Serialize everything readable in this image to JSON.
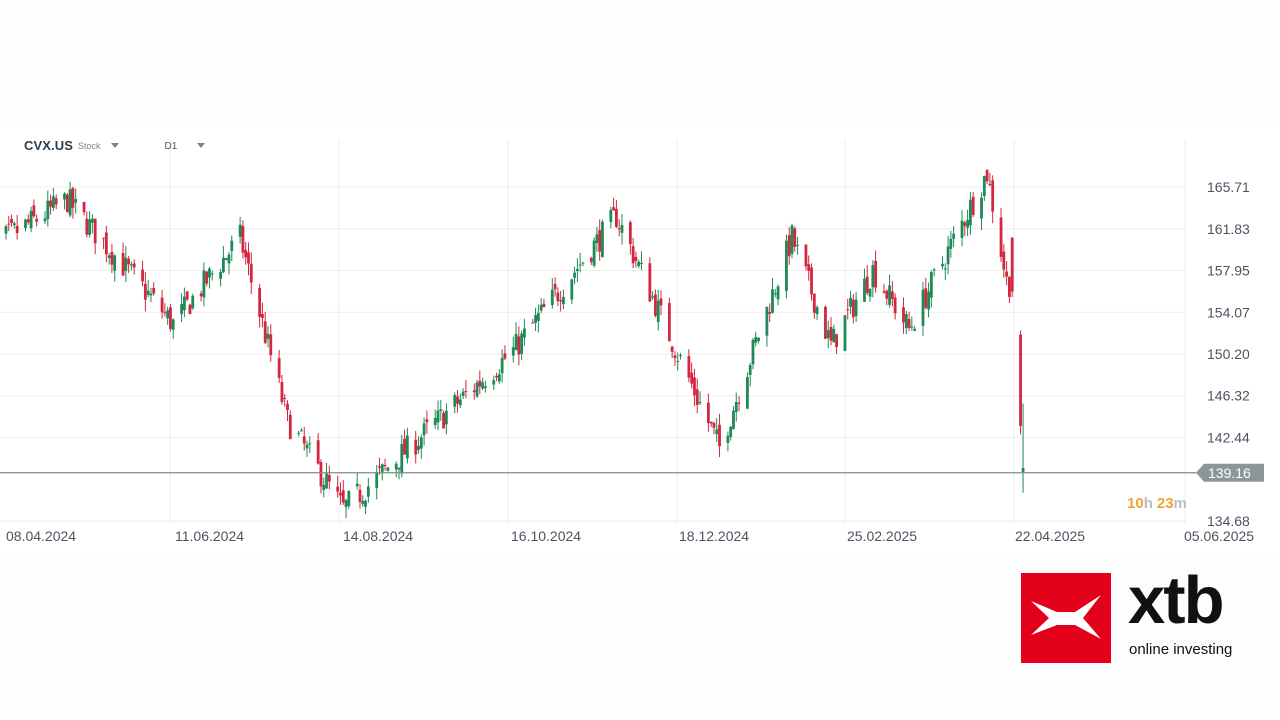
{
  "toolbar": {
    "symbol": "CVX.US",
    "symbol_type": "Stock",
    "timeframe": "D1"
  },
  "countdown": {
    "hours": "10",
    "hours_unit": "h",
    "minutes": "23",
    "minutes_unit": "m"
  },
  "colors": {
    "bull": "#1e8a58",
    "bear": "#d1283e",
    "grid": "#ededed",
    "price_line": "#7f8a8f",
    "price_tag": "#8c9699",
    "countdown_num": "#f0a330",
    "countdown_unit": "#b9bec4"
  },
  "logo": {
    "word": "xtb",
    "tagline": "online investing"
  },
  "chart_data": {
    "type": "candlestick",
    "instrument": "CVX.US",
    "interval": "D1",
    "y_ticks": [
      "165.71",
      "161.83",
      "157.95",
      "154.07",
      "150.20",
      "146.32",
      "142.44",
      "134.68"
    ],
    "x_ticks": [
      "08.04.2024",
      "11.06.2024",
      "14.08.2024",
      "16.10.2024",
      "18.12.2024",
      "25.02.2025",
      "22.04.2025",
      "05.06.2025"
    ],
    "ylim": [
      134.3,
      167.5
    ],
    "current_price": "139.16",
    "key_prices": [
      {
        "date": "2024-04-05",
        "close": 160.5
      },
      {
        "date": "2024-04-30",
        "close": 164.5
      },
      {
        "date": "2024-06-07",
        "close": 153.0
      },
      {
        "date": "2024-07-01",
        "close": 161.0
      },
      {
        "date": "2024-07-18",
        "close": 144.0
      },
      {
        "date": "2024-08-07",
        "close": 135.8
      },
      {
        "date": "2024-10-07",
        "close": 150.5
      },
      {
        "date": "2024-11-13",
        "close": 163.0
      },
      {
        "date": "2024-12-20",
        "close": 141.5
      },
      {
        "date": "2025-01-15",
        "close": 161.0
      },
      {
        "date": "2025-01-29",
        "close": 151.0
      },
      {
        "date": "2025-02-13",
        "close": 158.0
      },
      {
        "date": "2025-02-26",
        "close": 152.5
      },
      {
        "date": "2025-03-26",
        "close": 167.0
      },
      {
        "date": "2025-04-03",
        "close": 155.5
      },
      {
        "date": "2025-04-04",
        "close": 143.0
      },
      {
        "date": "2025-04-07",
        "close": 139.16
      }
    ]
  }
}
